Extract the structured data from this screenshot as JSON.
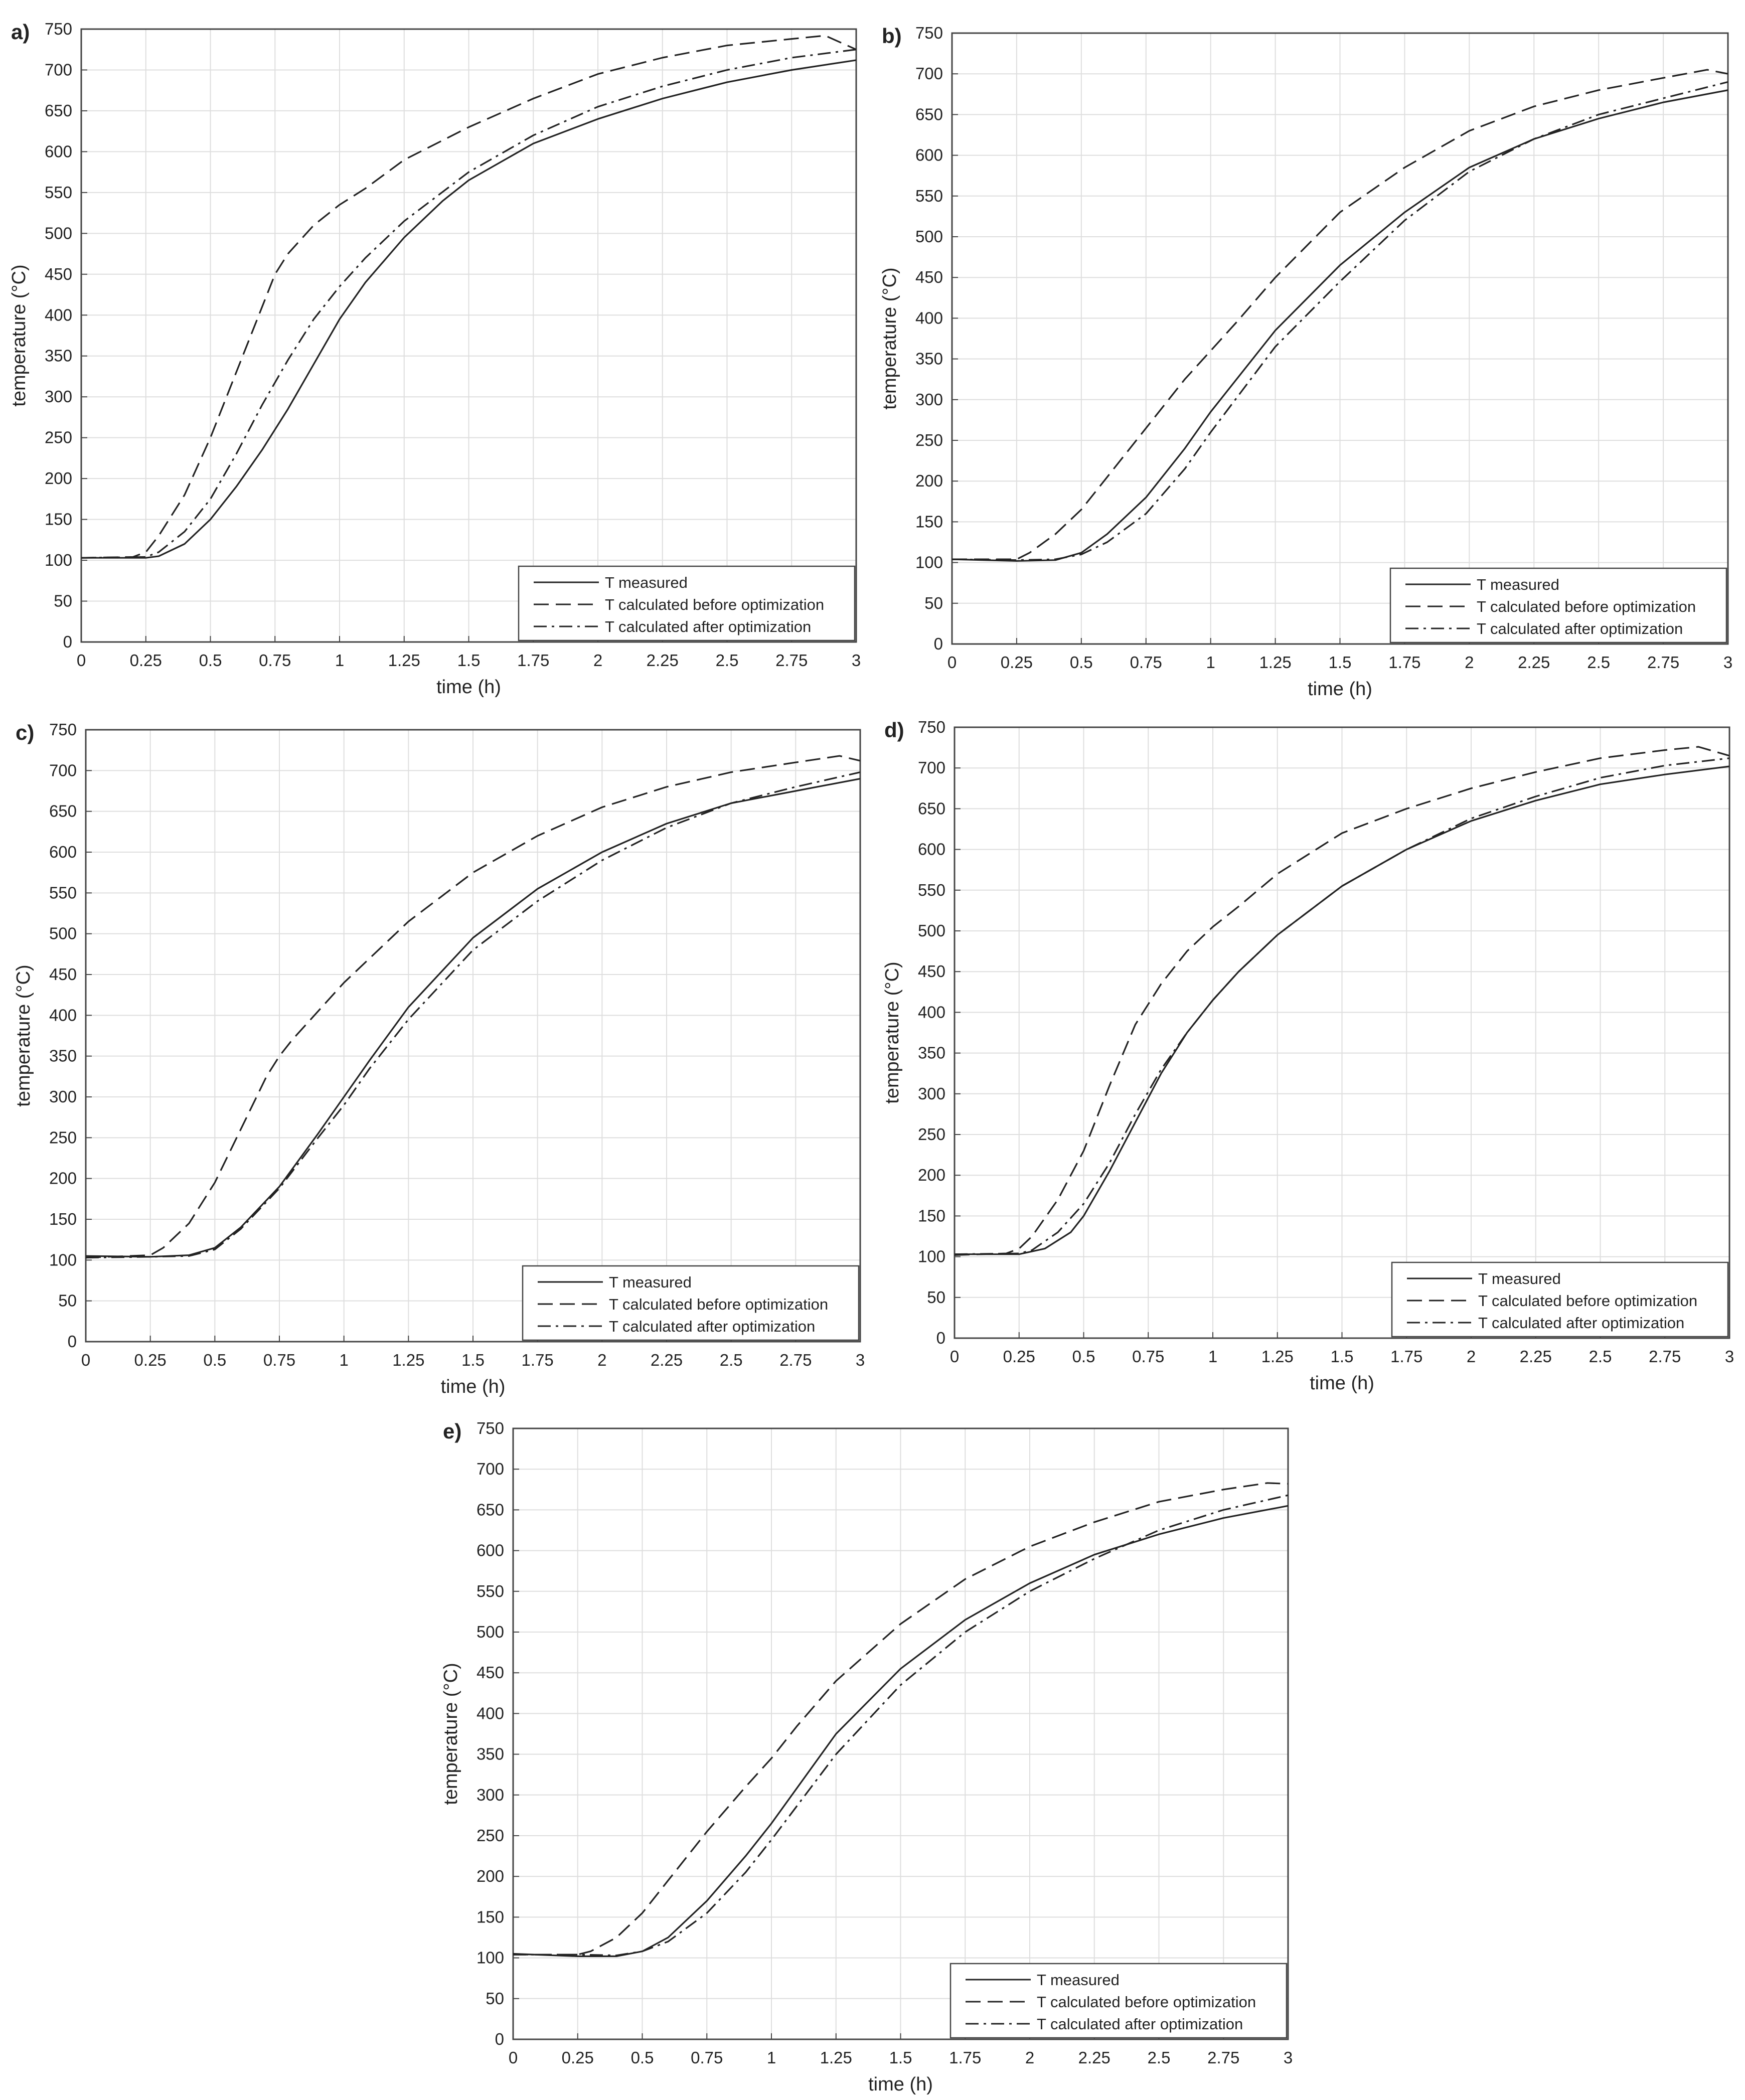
{
  "figure": {
    "legend_entries": [
      "T measured",
      "T calculated before optimization",
      "T calculated after optimization"
    ],
    "x_ticks": [
      "0",
      "0.25",
      "0.5",
      "0.75",
      "1",
      "1.25",
      "1.5",
      "1.75",
      "2",
      "2.25",
      "2.5",
      "2.75",
      "3"
    ],
    "y_ticks": [
      "0",
      "50",
      "100",
      "150",
      "200",
      "250",
      "300",
      "350",
      "400",
      "450",
      "500",
      "550",
      "600",
      "650",
      "700",
      "750"
    ]
  },
  "chart_data": [
    {
      "panel": "a)",
      "type": "line",
      "xlabel": "time (h)",
      "ylabel": "temperature (°C)",
      "xlim": [
        0,
        3
      ],
      "ylim": [
        0,
        750
      ],
      "grid": true,
      "legend_position": "bottom-right",
      "series": [
        {
          "name": "T measured",
          "style": "solid",
          "x": [
            0,
            0.25,
            0.3,
            0.4,
            0.5,
            0.6,
            0.7,
            0.8,
            0.9,
            1,
            1.1,
            1.25,
            1.4,
            1.5,
            1.75,
            2,
            2.25,
            2.5,
            2.75,
            3
          ],
          "y": [
            103,
            103,
            105,
            120,
            150,
            190,
            235,
            285,
            340,
            395,
            440,
            495,
            540,
            565,
            610,
            640,
            665,
            685,
            700,
            712
          ]
        },
        {
          "name": "T calculated before optimization",
          "style": "dashed",
          "x": [
            0,
            0.2,
            0.25,
            0.3,
            0.4,
            0.5,
            0.6,
            0.7,
            0.75,
            0.8,
            0.9,
            1,
            1.1,
            1.25,
            1.5,
            1.75,
            2,
            2.25,
            2.5,
            2.75,
            2.88,
            3
          ],
          "y": [
            103,
            104,
            110,
            130,
            180,
            250,
            330,
            410,
            450,
            475,
            510,
            535,
            555,
            590,
            630,
            665,
            695,
            715,
            730,
            738,
            742,
            725
          ]
        },
        {
          "name": "T calculated after optimization",
          "style": "dashdot",
          "x": [
            0,
            0.25,
            0.3,
            0.4,
            0.5,
            0.6,
            0.7,
            0.8,
            0.9,
            1,
            1.1,
            1.25,
            1.5,
            1.75,
            2,
            2.25,
            2.5,
            2.75,
            3
          ],
          "y": [
            103,
            104,
            110,
            135,
            175,
            230,
            290,
            345,
            395,
            435,
            470,
            515,
            575,
            620,
            655,
            680,
            700,
            715,
            725
          ]
        }
      ]
    },
    {
      "panel": "b)",
      "type": "line",
      "xlabel": "time (h)",
      "ylabel": "temperature (°C)",
      "xlim": [
        0,
        3
      ],
      "ylim": [
        0,
        750
      ],
      "grid": true,
      "legend_position": "bottom-right",
      "series": [
        {
          "name": "T measured",
          "style": "solid",
          "x": [
            0,
            0.25,
            0.4,
            0.5,
            0.6,
            0.75,
            0.9,
            1,
            1.25,
            1.5,
            1.75,
            2,
            2.25,
            2.5,
            2.75,
            3
          ],
          "y": [
            104,
            102,
            103,
            112,
            135,
            180,
            240,
            285,
            385,
            465,
            530,
            585,
            620,
            645,
            665,
            680
          ]
        },
        {
          "name": "T calculated before optimization",
          "style": "dashed",
          "x": [
            0,
            0.25,
            0.3,
            0.4,
            0.5,
            0.6,
            0.75,
            0.9,
            1,
            1.1,
            1.25,
            1.5,
            1.75,
            2,
            2.25,
            2.5,
            2.75,
            2.92,
            3
          ],
          "y": [
            104,
            104,
            112,
            135,
            165,
            205,
            265,
            325,
            360,
            395,
            450,
            530,
            585,
            630,
            660,
            680,
            695,
            705,
            700
          ]
        },
        {
          "name": "T calculated after optimization",
          "style": "dashdot",
          "x": [
            0,
            0.25,
            0.4,
            0.5,
            0.6,
            0.75,
            0.9,
            1,
            1.25,
            1.5,
            1.75,
            2,
            2.25,
            2.5,
            2.75,
            3
          ],
          "y": [
            104,
            103,
            104,
            110,
            125,
            160,
            215,
            260,
            365,
            445,
            520,
            580,
            620,
            650,
            670,
            690
          ]
        }
      ]
    },
    {
      "panel": "c)",
      "type": "line",
      "xlabel": "time (h)",
      "ylabel": "temperature (°C)",
      "xlim": [
        0,
        3
      ],
      "ylim": [
        0,
        750
      ],
      "grid": true,
      "legend_position": "bottom-right",
      "series": [
        {
          "name": "T measured",
          "style": "solid",
          "x": [
            0,
            0.25,
            0.4,
            0.5,
            0.6,
            0.75,
            0.9,
            1,
            1.1,
            1.25,
            1.5,
            1.75,
            2,
            2.25,
            2.5,
            2.75,
            3
          ],
          "y": [
            105,
            104,
            106,
            115,
            140,
            190,
            255,
            300,
            345,
            410,
            495,
            555,
            600,
            635,
            660,
            675,
            690
          ]
        },
        {
          "name": "T calculated before optimization",
          "style": "dashed",
          "x": [
            0,
            0.25,
            0.3,
            0.4,
            0.5,
            0.6,
            0.7,
            0.75,
            0.8,
            0.9,
            1,
            1.1,
            1.25,
            1.5,
            1.75,
            2,
            2.25,
            2.5,
            2.75,
            2.92,
            3
          ],
          "y": [
            103,
            106,
            115,
            145,
            195,
            260,
            325,
            350,
            370,
            405,
            440,
            470,
            515,
            575,
            620,
            655,
            680,
            698,
            710,
            718,
            712
          ]
        },
        {
          "name": "T calculated after optimization",
          "style": "dashdot",
          "x": [
            0,
            0.25,
            0.4,
            0.5,
            0.6,
            0.75,
            0.9,
            1,
            1.1,
            1.25,
            1.5,
            1.75,
            2,
            2.25,
            2.5,
            2.75,
            3
          ],
          "y": [
            103,
            104,
            105,
            113,
            138,
            188,
            250,
            290,
            335,
            395,
            480,
            540,
            590,
            630,
            660,
            680,
            698
          ]
        }
      ]
    },
    {
      "panel": "d)",
      "type": "line",
      "xlabel": "time (h)",
      "ylabel": "temperature (°C)",
      "xlim": [
        0,
        3
      ],
      "ylim": [
        0,
        750
      ],
      "grid": true,
      "legend_position": "bottom-right",
      "series": [
        {
          "name": "T measured",
          "style": "solid",
          "x": [
            0,
            0.25,
            0.35,
            0.45,
            0.5,
            0.6,
            0.7,
            0.8,
            0.9,
            1,
            1.1,
            1.25,
            1.5,
            1.75,
            2,
            2.25,
            2.5,
            2.75,
            3
          ],
          "y": [
            103,
            103,
            110,
            130,
            150,
            205,
            265,
            325,
            375,
            415,
            450,
            495,
            555,
            600,
            635,
            660,
            680,
            692,
            702
          ]
        },
        {
          "name": "T calculated before optimization",
          "style": "dashed",
          "x": [
            0,
            0.2,
            0.25,
            0.3,
            0.4,
            0.5,
            0.6,
            0.7,
            0.75,
            0.8,
            0.9,
            1,
            1.1,
            1.25,
            1.5,
            1.75,
            2,
            2.25,
            2.5,
            2.75,
            2.88,
            3
          ],
          "y": [
            102,
            104,
            110,
            125,
            170,
            230,
            310,
            385,
            410,
            435,
            475,
            505,
            530,
            570,
            620,
            650,
            675,
            695,
            712,
            722,
            726,
            715
          ]
        },
        {
          "name": "T calculated after optimization",
          "style": "dashdot",
          "x": [
            0,
            0.25,
            0.3,
            0.4,
            0.5,
            0.6,
            0.7,
            0.8,
            0.9,
            1,
            1.1,
            1.25,
            1.5,
            1.75,
            2,
            2.25,
            2.5,
            2.75,
            3
          ],
          "y": [
            103,
            104,
            108,
            130,
            165,
            215,
            275,
            330,
            375,
            415,
            450,
            495,
            555,
            600,
            638,
            665,
            688,
            703,
            712
          ]
        }
      ]
    },
    {
      "panel": "e)",
      "type": "line",
      "xlabel": "time (h)",
      "ylabel": "temperature (°C)",
      "xlim": [
        0,
        3
      ],
      "ylim": [
        0,
        750
      ],
      "grid": true,
      "legend_position": "bottom-right",
      "series": [
        {
          "name": "T measured",
          "style": "solid",
          "x": [
            0,
            0.25,
            0.4,
            0.5,
            0.6,
            0.75,
            0.9,
            1,
            1.25,
            1.5,
            1.75,
            2,
            2.25,
            2.5,
            2.75,
            3
          ],
          "y": [
            105,
            102,
            102,
            108,
            125,
            170,
            225,
            265,
            375,
            455,
            515,
            560,
            595,
            620,
            640,
            655
          ]
        },
        {
          "name": "T calculated before optimization",
          "style": "dashed",
          "x": [
            0,
            0.25,
            0.3,
            0.4,
            0.5,
            0.6,
            0.75,
            0.9,
            1,
            1.1,
            1.25,
            1.5,
            1.75,
            2,
            2.25,
            2.5,
            2.75,
            2.92,
            3
          ],
          "y": [
            104,
            104,
            108,
            125,
            155,
            195,
            255,
            310,
            345,
            385,
            440,
            510,
            565,
            605,
            635,
            660,
            675,
            683,
            682
          ]
        },
        {
          "name": "T calculated after optimization",
          "style": "dashdot",
          "x": [
            0,
            0.25,
            0.4,
            0.5,
            0.6,
            0.75,
            0.9,
            1,
            1.25,
            1.5,
            1.75,
            2,
            2.25,
            2.5,
            2.75,
            3
          ],
          "y": [
            104,
            104,
            103,
            108,
            120,
            155,
            205,
            245,
            350,
            435,
            500,
            550,
            590,
            625,
            650,
            668
          ]
        }
      ]
    }
  ]
}
